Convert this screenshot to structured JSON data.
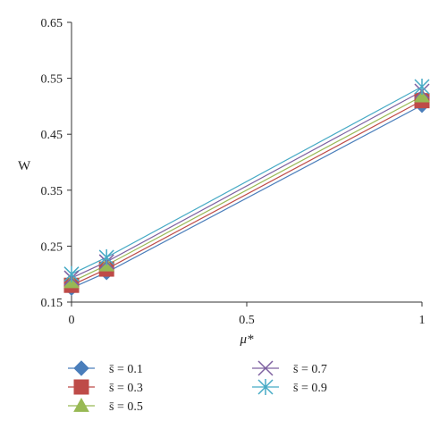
{
  "chart_data": {
    "type": "line",
    "xlabel": "μ*",
    "ylabel": "W",
    "xlim": [
      0,
      1
    ],
    "ylim": [
      0.15,
      0.65
    ],
    "x_ticks": [
      "0",
      "0.5",
      "1"
    ],
    "y_ticks": [
      "0.15",
      "0.25",
      "0.35",
      "0.45",
      "0.55",
      "0.65"
    ],
    "grid": false,
    "legend_position": "bottom",
    "x": [
      0,
      0.1,
      1
    ],
    "series": [
      {
        "name": "s̄ = 0.1",
        "values": [
          0.175,
          0.203,
          0.502
        ],
        "color": "#4a7ebb",
        "marker": "diamond"
      },
      {
        "name": "s̄ = 0.3",
        "values": [
          0.18,
          0.209,
          0.51
        ],
        "color": "#be4b48",
        "marker": "square"
      },
      {
        "name": "s̄ = 0.5",
        "values": [
          0.186,
          0.216,
          0.518
        ],
        "color": "#98b954",
        "marker": "triangle"
      },
      {
        "name": "s̄ = 0.7",
        "values": [
          0.193,
          0.222,
          0.527
        ],
        "color": "#7d60a0",
        "marker": "x"
      },
      {
        "name": "s̄ = 0.9",
        "values": [
          0.2,
          0.23,
          0.535
        ],
        "color": "#46aac5",
        "marker": "star"
      }
    ]
  }
}
